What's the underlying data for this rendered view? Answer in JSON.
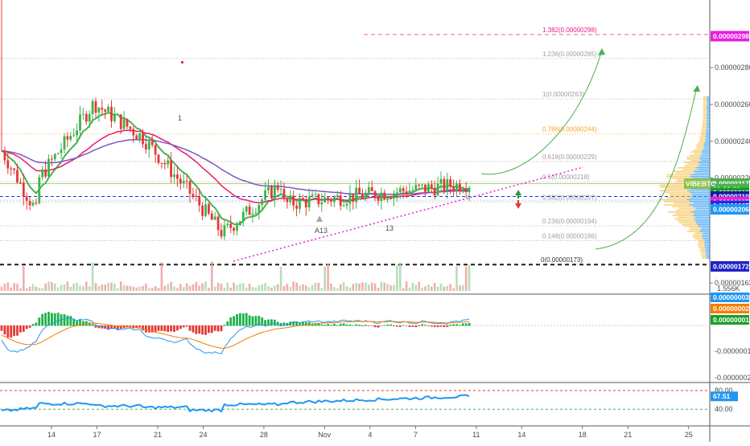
{
  "chart_data": {
    "type": "candlestick",
    "symbol": "VIBEBTC",
    "countdown": "01:00:00",
    "price_axis": {
      "ticks": [
        "0.00000280",
        "0.00000260",
        "0.00000240",
        "0.00000220",
        "0.00000163"
      ],
      "ylim": [
        1.55e-06,
        3.2e-06
      ]
    },
    "x_axis": {
      "ticks": [
        "14",
        "17",
        "21",
        "24",
        "28",
        "Nov",
        "4",
        "7",
        "11",
        "14",
        "18",
        "21",
        "25"
      ],
      "tick_days": [
        14,
        17,
        21,
        24,
        28,
        32,
        35,
        38,
        42,
        45,
        49,
        52,
        56
      ]
    },
    "fib_levels": [
      {
        "label": "1.382(0.00000298)",
        "value": 2.98e-06,
        "color": "#e91e8c"
      },
      {
        "label": "1.236(0.00000285)",
        "value": 2.85e-06,
        "color": "#9e9e9e"
      },
      {
        "label": "1(0.00000263)",
        "value": 2.63e-06,
        "color": "#9e9e9e"
      },
      {
        "label": "0.786(0.00000244)",
        "value": 2.44e-06,
        "color": "#f5a623"
      },
      {
        "label": "0.618(0.00000229)",
        "value": 2.29e-06,
        "color": "#9e9e9e"
      },
      {
        "label": "0.5(0.00000218)",
        "value": 2.18e-06,
        "color": "#9e9e9e"
      },
      {
        "label": "0.382(0.00000207)",
        "value": 2.07e-06,
        "color": "#9e9e9e"
      },
      {
        "label": "0.236(0.00000194)",
        "value": 1.94e-06,
        "color": "#9e9e9e"
      },
      {
        "label": "0.148(0.00000186)",
        "value": 1.86e-06,
        "color": "#9e9e9e"
      },
      {
        "label": "0(0.00000173)",
        "value": 1.73e-06,
        "color": "#1e1e1e"
      }
    ],
    "price_tags": [
      {
        "label": "0.00000298",
        "value": 2.98e-06,
        "color": "#e91ee0"
      },
      {
        "label": "0.00000217",
        "value": 2.17e-06,
        "color": "#4caf50"
      },
      {
        "label": "01:00:00",
        "value": 2.14e-06,
        "color": "#4caf50"
      },
      {
        "label": "0.00000212",
        "value": 2.12e-06,
        "color": "#1a9e2a"
      },
      {
        "label": "0.00000210",
        "value": 2.1e-06,
        "color": "#1a1a9e"
      },
      {
        "label": "0.00000207",
        "value": 2.07e-06,
        "color": "#e91ee0"
      },
      {
        "label": "0.00000207",
        "value": 2.05e-06,
        "color": "#2929d6"
      },
      {
        "label": "0.00000206",
        "value": 2.03e-06,
        "color": "#2196f3"
      },
      {
        "label": "0.00000172",
        "value": 1.72e-06,
        "color": "#1e22c8"
      }
    ],
    "volume_label": "1.556K",
    "annotations": {
      "count_a": "A13",
      "count_b": "13",
      "mark_1": "1"
    },
    "macd": {
      "ticks": [
        "-0.00000010",
        "-0.00000020"
      ],
      "tags": [
        {
          "label": "0.00000003",
          "color": "#2196f3"
        },
        {
          "label": "0.00000002",
          "color": "#f57c00"
        },
        {
          "label": "0.00000001",
          "color": "#1a9e2a"
        }
      ]
    },
    "rsi": {
      "ticks": [
        "80.00",
        "40.00"
      ],
      "value_tag": "67.51",
      "upper": 80,
      "lower": 40,
      "last": 67.51
    },
    "colors": {
      "up": "#26a69a",
      "down": "#ef5350",
      "ema_fast": "#4caf50",
      "ema_mid": "#e91e63",
      "ema_slow": "#7e57c2",
      "projection": "#4caf50",
      "trendline": "#e91ee0",
      "volume_profile_up": "#42a5f5",
      "volume_profile_down": "#f5c04a"
    }
  }
}
